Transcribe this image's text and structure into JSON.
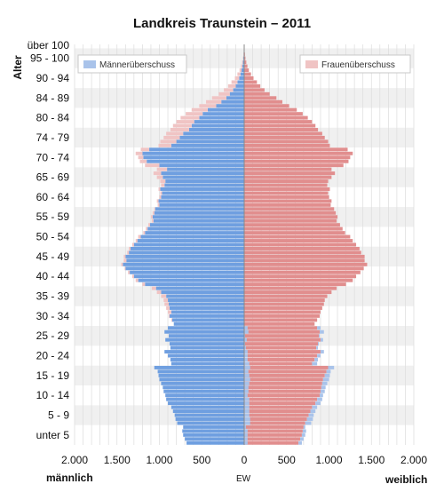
{
  "chart_data": {
    "type": "population-pyramid",
    "title": "Landkreis Traunstein – 2011",
    "ylabel": "Alter",
    "xlabel": "EW",
    "left_label": "männlich",
    "right_label": "weiblich",
    "x_range": [
      -2000,
      2000
    ],
    "x_ticks": [
      -2000,
      -1500,
      -1000,
      -500,
      0,
      500,
      1000,
      1500,
      2000
    ],
    "x_tick_labels": [
      "2.000",
      "1.500",
      "1.000",
      "500",
      "0",
      "500",
      "1.000",
      "1.500",
      "2.000"
    ],
    "y_tick_labels": [
      "unter 5",
      "5 - 9",
      "10 - 14",
      "15 - 19",
      "20 - 24",
      "25 - 29",
      "30 - 34",
      "35 - 39",
      "40 - 44",
      "45 - 49",
      "50 - 54",
      "55 - 59",
      "60 - 64",
      "65 - 69",
      "70 - 74",
      "74 - 79",
      "80 - 84",
      "84 - 89",
      "90 - 94",
      "95 - 100",
      "über 100"
    ],
    "legend": [
      {
        "label": "Männerüberschuss",
        "color": "#a9c3ea",
        "position": "top-left"
      },
      {
        "label": "Frauenüberschuss",
        "color": "#f0c4c4",
        "position": "top-right"
      }
    ],
    "colors": {
      "male": "#6f9fe0",
      "female": "#e18e8e",
      "male_surplus": "#a9c3ea",
      "female_surplus": "#f0c4c4"
    },
    "age_start": 0,
    "age_step": 1,
    "male_by_age": [
      680,
      700,
      720,
      730,
      720,
      790,
      810,
      820,
      840,
      860,
      900,
      920,
      930,
      950,
      960,
      980,
      1000,
      1010,
      1020,
      1060,
      860,
      870,
      900,
      940,
      870,
      880,
      930,
      890,
      940,
      900,
      830,
      850,
      880,
      860,
      880,
      890,
      900,
      920,
      980,
      1040,
      1170,
      1250,
      1300,
      1350,
      1400,
      1430,
      1390,
      1400,
      1360,
      1340,
      1300,
      1260,
      1220,
      1170,
      1140,
      1110,
      1070,
      1080,
      1060,
      1050,
      1000,
      1010,
      980,
      970,
      990,
      940,
      930,
      960,
      980,
      910,
      1000,
      1150,
      1190,
      1200,
      1120,
      860,
      800,
      760,
      720,
      650,
      620,
      590,
      530,
      490,
      430,
      330,
      270,
      210,
      170,
      130,
      100,
      80,
      60,
      45,
      32,
      22,
      15,
      10,
      6,
      4,
      3
    ],
    "female_by_age": [
      640,
      660,
      680,
      690,
      700,
      720,
      740,
      760,
      780,
      800,
      840,
      860,
      890,
      900,
      910,
      920,
      930,
      950,
      970,
      990,
      800,
      830,
      860,
      900,
      850,
      870,
      900,
      880,
      890,
      860,
      830,
      860,
      890,
      900,
      920,
      940,
      950,
      980,
      1030,
      1090,
      1200,
      1280,
      1320,
      1370,
      1410,
      1450,
      1420,
      1420,
      1380,
      1360,
      1320,
      1280,
      1250,
      1190,
      1160,
      1130,
      1090,
      1100,
      1080,
      1060,
      1020,
      1030,
      1000,
      990,
      1010,
      980,
      990,
      1030,
      1070,
      1030,
      1170,
      1230,
      1250,
      1280,
      1220,
      1010,
      990,
      950,
      920,
      870,
      840,
      800,
      750,
      690,
      620,
      530,
      450,
      380,
      300,
      240,
      190,
      150,
      110,
      80,
      55,
      38,
      25,
      15,
      9,
      5,
      3
    ]
  }
}
